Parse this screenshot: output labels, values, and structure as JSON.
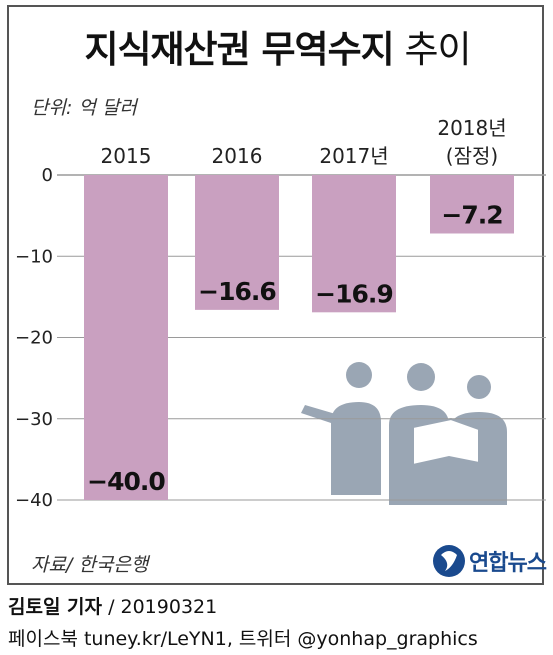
{
  "title_bold": "지식재산권 무역수지",
  "title_light": "추이",
  "unit": "단위: 억 달러",
  "source": "자료/ 한국은행",
  "logo_text": "연합뉴스",
  "byline": {
    "name": "김토일 기자",
    "date": "/ 20190321"
  },
  "social": "페이스북 tuney.kr/LeYN1, 트위터 @yonhap_graphics",
  "colors": {
    "bar": "#c9a0c0",
    "grid": "#9a9a9a",
    "silhouette": "#9aa6b4"
  },
  "chart_data": {
    "type": "bar",
    "categories": [
      "2015",
      "2016",
      "2017년",
      "2018년\n(잠정)"
    ],
    "values": [
      -40.0,
      -16.6,
      -16.9,
      -7.2
    ],
    "value_labels": [
      "−40.0",
      "−16.6",
      "−16.9",
      "−7.2"
    ],
    "ylim": [
      -40,
      0
    ],
    "yticks": [
      0,
      -10,
      -20,
      -30,
      -40
    ],
    "ytick_labels": [
      "0",
      "−10",
      "−20",
      "−30",
      "−40"
    ],
    "grid": true
  }
}
